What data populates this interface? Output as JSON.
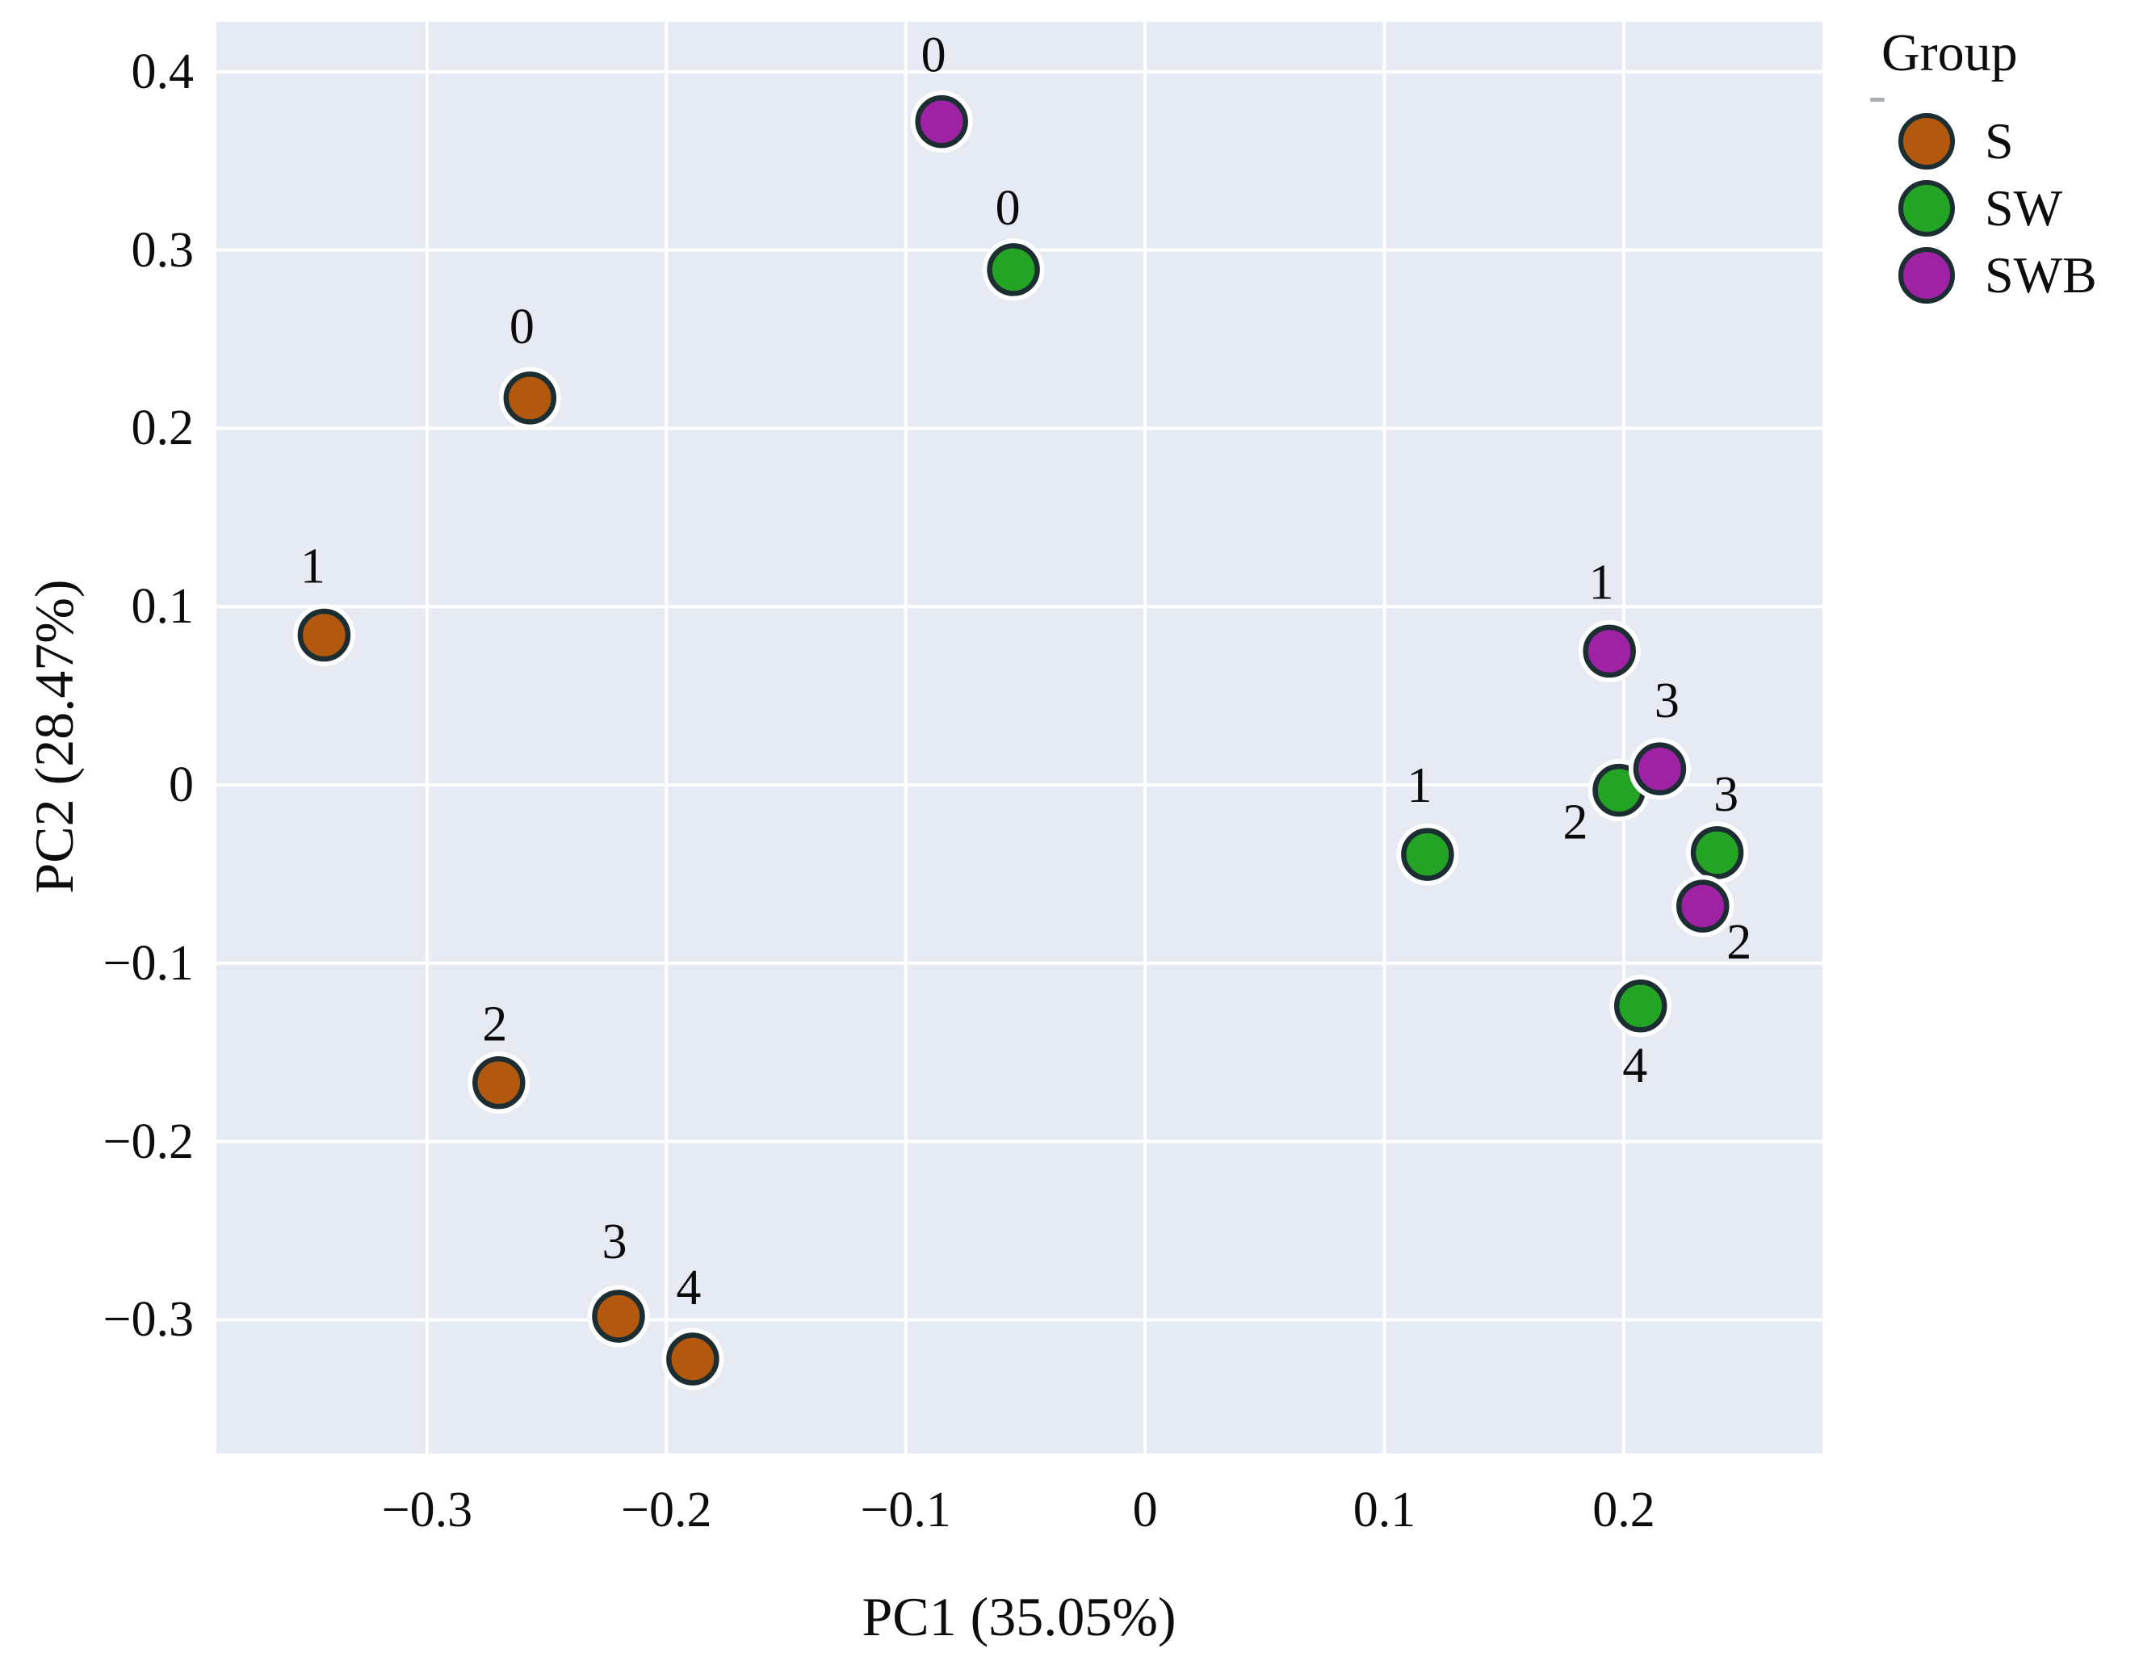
{
  "chart_data": {
    "type": "scatter",
    "title": "",
    "xlabel": "PC1 (35.05%)",
    "ylabel": "PC2 (28.47%)",
    "xlim": [
      -0.388,
      0.283
    ],
    "ylim": [
      -0.375,
      0.428
    ],
    "xticks": [
      -0.3,
      -0.2,
      -0.1,
      0,
      0.1,
      0.2
    ],
    "yticks": [
      0.4,
      0.3,
      0.2,
      0.1,
      0,
      -0.1,
      -0.2,
      -0.3
    ],
    "grid": true,
    "plot_bg_color": "#E6EAF3",
    "grid_color": "#FFFFFF",
    "marker_edge_color": "#1C2E32",
    "marker_halo_color": "#FFFFFF",
    "legend": {
      "title": "Group",
      "position": "upper-right-outside",
      "entries": [
        {
          "name": "S",
          "color": "#B2590F"
        },
        {
          "name": "SW",
          "color": "#24A424"
        },
        {
          "name": "SWB",
          "color": "#9F22A5"
        }
      ]
    },
    "series": [
      {
        "name": "S",
        "color": "#B2590F",
        "points": [
          {
            "label": "0",
            "x": -0.257,
            "y": 0.217,
            "dx": -10,
            "dy": -88
          },
          {
            "label": "1",
            "x": -0.343,
            "y": 0.084,
            "dx": -14,
            "dy": -85
          },
          {
            "label": "2",
            "x": -0.27,
            "y": -0.167,
            "dx": -5,
            "dy": -72
          },
          {
            "label": "3",
            "x": -0.22,
            "y": -0.298,
            "dx": -5,
            "dy": -92
          },
          {
            "label": "4",
            "x": -0.189,
            "y": -0.322,
            "dx": -5,
            "dy": -88
          }
        ]
      },
      {
        "name": "SW",
        "color": "#24A424",
        "points": [
          {
            "label": "0",
            "x": -0.055,
            "y": 0.289,
            "dx": -7,
            "dy": -76
          },
          {
            "label": "1",
            "x": 0.118,
            "y": -0.039,
            "dx": -10,
            "dy": -85
          },
          {
            "label": "2",
            "x": 0.198,
            "y": -0.003,
            "dx": -54,
            "dy": 40
          },
          {
            "label": "3",
            "x": 0.239,
            "y": -0.038,
            "dx": 11,
            "dy": -72
          },
          {
            "label": "4",
            "x": 0.207,
            "y": -0.124,
            "dx": -7,
            "dy": 74
          }
        ]
      },
      {
        "name": "SWB",
        "color": "#9F22A5",
        "points": [
          {
            "label": "0",
            "x": -0.085,
            "y": 0.372,
            "dx": -10,
            "dy": -82
          },
          {
            "label": "1",
            "x": 0.194,
            "y": 0.075,
            "dx": -10,
            "dy": -85
          },
          {
            "label": "2",
            "x": 0.233,
            "y": -0.068,
            "dx": 45,
            "dy": 45
          },
          {
            "label": "3",
            "x": 0.215,
            "y": 0.009,
            "dx": 9,
            "dy": -84
          }
        ]
      }
    ]
  }
}
